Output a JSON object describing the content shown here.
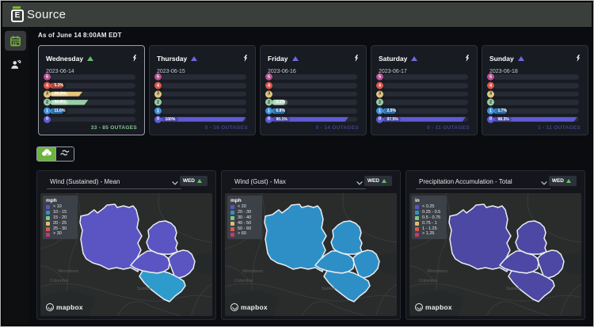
{
  "header": {
    "logo_letter": "E",
    "logo_text": "Source"
  },
  "sidebar": {
    "items": [
      {
        "id": "forecast",
        "icon": "calendar-icon",
        "active": true
      },
      {
        "id": "crews",
        "icon": "user-wrench-icon",
        "active": false
      }
    ]
  },
  "main": {
    "as_of": "As of June 14 8:00AM EDT",
    "level_colors": {
      "5": "#b45090",
      "4": "#dc564b",
      "3": "#e4c77e",
      "2": "#99cda6",
      "1": "#3f90da",
      "0": "#5e5bd3"
    },
    "trend_colors": {
      "up_green": "#66bb6a",
      "up_indigo": "#6f6adb"
    },
    "day_cards": [
      {
        "day": "Wednesday",
        "date": "2023-06-14",
        "selected": true,
        "trend": "up_green",
        "rows": [
          {
            "level": "5",
            "pct": "",
            "fill": 0
          },
          {
            "level": "4",
            "pct": "5.3%",
            "fill": 5.3
          },
          {
            "level": "3",
            "pct": "38.3%",
            "fill": 38.3
          },
          {
            "level": "2",
            "pct": "44.8%",
            "fill": 44.8
          },
          {
            "level": "1",
            "pct": "11.6%",
            "fill": 11.6
          },
          {
            "level": "0",
            "pct": "",
            "fill": 0
          }
        ],
        "outages": "33 - 85 OUTAGES",
        "outages_color": "#7fc992"
      },
      {
        "day": "Thursday",
        "date": "2023-06-15",
        "selected": false,
        "trend": "up_indigo",
        "rows": [
          {
            "level": "5",
            "pct": "",
            "fill": 0
          },
          {
            "level": "4",
            "pct": "",
            "fill": 0
          },
          {
            "level": "3",
            "pct": "",
            "fill": 0
          },
          {
            "level": "2",
            "pct": "",
            "fill": 0
          },
          {
            "level": "1",
            "pct": "",
            "fill": 0
          },
          {
            "level": "0",
            "pct": "100%",
            "fill": 100
          }
        ],
        "outages": "0 - 16 OUTAGES",
        "outages_color": "#41418c"
      },
      {
        "day": "Friday",
        "date": "2023-06-16",
        "selected": false,
        "trend": "up_indigo",
        "rows": [
          {
            "level": "5",
            "pct": "",
            "fill": 0
          },
          {
            "level": "4",
            "pct": "",
            "fill": 0
          },
          {
            "level": "3",
            "pct": "",
            "fill": 0
          },
          {
            "level": "2",
            "pct": "3.1%",
            "fill": 3.1
          },
          {
            "level": "1",
            "pct": "6.8%",
            "fill": 6.8
          },
          {
            "level": "0",
            "pct": "90.1%",
            "fill": 90.1
          }
        ],
        "outages": "0 - 14 OUTAGES",
        "outages_color": "#41418c"
      },
      {
        "day": "Saturday",
        "date": "2023-06-17",
        "selected": false,
        "trend": "up_indigo",
        "rows": [
          {
            "level": "5",
            "pct": "",
            "fill": 0
          },
          {
            "level": "4",
            "pct": "",
            "fill": 0
          },
          {
            "level": "3",
            "pct": "",
            "fill": 0
          },
          {
            "level": "2",
            "pct": "",
            "fill": 0
          },
          {
            "level": "1",
            "pct": "2.5%",
            "fill": 2.5
          },
          {
            "level": "0",
            "pct": "97.5%",
            "fill": 97.5
          }
        ],
        "outages": "0 - 11 OUTAGES",
        "outages_color": "#41418c"
      },
      {
        "day": "Sunday",
        "date": "2023-06-18",
        "selected": false,
        "trend": "up_indigo",
        "rows": [
          {
            "level": "5",
            "pct": "",
            "fill": 0
          },
          {
            "level": "4",
            "pct": "",
            "fill": 0
          },
          {
            "level": "3",
            "pct": "",
            "fill": 0
          },
          {
            "level": "2",
            "pct": "",
            "fill": 0
          },
          {
            "level": "1",
            "pct": "1.7%",
            "fill": 1.7
          },
          {
            "level": "0",
            "pct": "98.3%",
            "fill": 98.3
          }
        ],
        "outages": "1 - 11 OUTAGES",
        "outages_color": "#41418c"
      }
    ],
    "toggles": [
      {
        "id": "storm",
        "icon": "storm-cloud-icon",
        "active": true
      },
      {
        "id": "wind",
        "icon": "wind-icon",
        "active": false
      }
    ],
    "category_colors": {
      "purple": "#5a55c2",
      "blue": "#2e93c8",
      "green": "#82c785",
      "yellow": "#d9c06a",
      "red": "#d95c49",
      "pink": "#bf3a78"
    },
    "panels": [
      {
        "title": "Wind (Sustained) - Mean",
        "badge": "WED",
        "legend_unit": "mph",
        "legend": [
          {
            "color": "purple",
            "label": "< 10"
          },
          {
            "color": "blue",
            "label": "10 - 15"
          },
          {
            "color": "green",
            "label": "15 - 20"
          },
          {
            "color": "yellow",
            "label": "20 - 25"
          },
          {
            "color": "red",
            "label": "25 - 30"
          },
          {
            "color": "pink",
            "label": "> 30"
          }
        ],
        "county_fills": [
          "#5a55c2",
          "#5a55c2",
          "#5a55c2",
          "#5a55c2",
          "#2e9bcd"
        ]
      },
      {
        "title": "Wind (Gust) - Max",
        "badge": "WED",
        "legend_unit": "mph",
        "legend": [
          {
            "color": "purple",
            "label": "< 20"
          },
          {
            "color": "blue",
            "label": "20 - 30"
          },
          {
            "color": "green",
            "label": "30 - 40"
          },
          {
            "color": "yellow",
            "label": "40 - 50"
          },
          {
            "color": "red",
            "label": "50 - 60"
          },
          {
            "color": "pink",
            "label": "> 60"
          }
        ],
        "county_fills": [
          "#2e8fc7",
          "#2e8fc7",
          "#2e8fc7",
          "#2e8fc7",
          "#2e8fc7"
        ]
      },
      {
        "title": "Precipitation Accumulation - Total",
        "badge": "WED",
        "legend_unit": "in",
        "legend": [
          {
            "color": "purple",
            "label": "< 0.25"
          },
          {
            "color": "blue",
            "label": "0.25 - 0.5"
          },
          {
            "color": "green",
            "label": "0.5 - 0.75"
          },
          {
            "color": "yellow",
            "label": "0.75 - 1"
          },
          {
            "color": "red",
            "label": "1 - 1.25"
          },
          {
            "color": "pink",
            "label": "> 1.25"
          }
        ],
        "county_fills": [
          "#4c48a4",
          "#4c48a4",
          "#4c48a4",
          "#4c48a4",
          "#4c48a4"
        ]
      }
    ],
    "map_labels": [
      "Winnsboro",
      "Columbia",
      "Sumter"
    ],
    "map_attribution": "mapbox"
  }
}
